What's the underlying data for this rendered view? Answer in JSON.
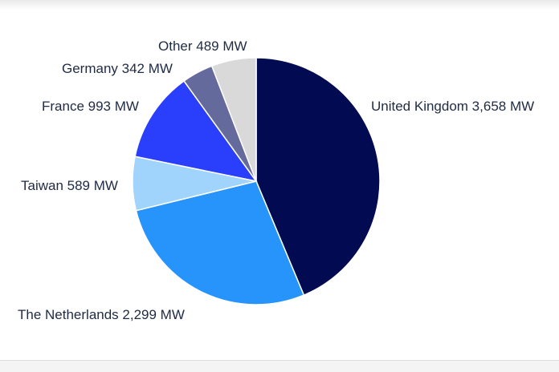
{
  "chart_data": {
    "type": "pie",
    "title": "",
    "slices": [
      {
        "label": "United Kingdom",
        "value": 3658,
        "value_text": "3,658 MW",
        "color": "#020b52"
      },
      {
        "label": "The Netherlands",
        "value": 2299,
        "value_text": "2,299 MW",
        "color": "#2794fb"
      },
      {
        "label": "Taiwan",
        "value": 589,
        "value_text": "589 MW",
        "color": "#a0d4fd"
      },
      {
        "label": "France",
        "value": 993,
        "value_text": "993 MW",
        "color": "#2a3ffb"
      },
      {
        "label": "Germany",
        "value": 342,
        "value_text": "342 MW",
        "color": "#646b9c"
      },
      {
        "label": "Other",
        "value": 489,
        "value_text": "489 MW",
        "color": "#d9d9d9"
      }
    ],
    "start_angle": "12 o'clock",
    "direction": "clockwise",
    "legend": "none (direct labels)"
  }
}
